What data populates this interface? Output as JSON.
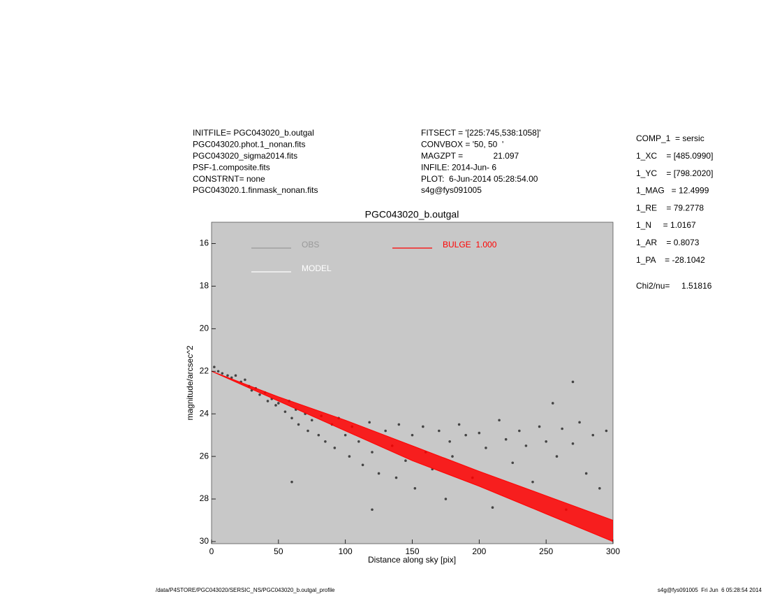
{
  "header": {
    "left": [
      "INITFILE= PGC043020_b.outgal",
      "PGC043020.phot.1_nonan.fits",
      "PGC043020_sigma2014.fits",
      "PSF-1.composite.fits",
      "CONSTRNT= none",
      "PGC043020.1.finmask_nonan.fits"
    ],
    "middle": [
      "FITSECT = '[225:745,538:1058]'",
      "CONVBOX = '50, 50  '",
      "MAGZPT =             21.097",
      "INFILE: 2014-Jun- 6",
      "PLOT:  6-Jun-2014 05:28:54.00",
      "s4g@fys091005"
    ],
    "params": [
      "COMP_1  = sersic",
      "1_XC    = [485.0990]",
      "1_YC    = [798.2020]",
      "1_MAG   = 12.4999",
      "1_RE    = 79.2778",
      "1_N     = 1.0167",
      "1_AR    = 0.8073",
      "1_PA    = -28.1042"
    ],
    "chi2": "Chi2/nu=     1.51816"
  },
  "footer": {
    "left": "/data/P4STORE/PGC043020/SERSIC_NS/PGC043020_b.outgal_profile",
    "right": "s4g@fys091005  Fri Jun  6 05:28:54 2014"
  },
  "chart_data": {
    "type": "scatter",
    "title": "PGC043020_b.outgal",
    "xlabel": "Distance along sky [pix]",
    "ylabel": "magnitude/arcsec^2",
    "xlim": [
      0,
      300
    ],
    "xticks": [
      0,
      50,
      100,
      150,
      200,
      250,
      300
    ],
    "ylim": [
      30.1,
      15
    ],
    "yticks": [
      16,
      18,
      20,
      22,
      24,
      26,
      28,
      30
    ],
    "background": "#c8c8c8",
    "series": [
      {
        "name": "OBS",
        "color": "#444444",
        "legend_color": "#999999",
        "x": [
          2,
          5,
          8,
          12,
          15,
          18,
          22,
          25,
          28,
          30,
          33,
          36,
          40,
          42,
          45,
          48,
          50,
          55,
          58,
          60,
          63,
          65,
          70,
          72,
          75,
          80,
          82,
          85,
          90,
          92,
          95,
          100,
          103,
          105,
          110,
          113,
          118,
          120,
          125,
          130,
          135,
          138,
          140,
          145,
          150,
          152,
          158,
          160,
          165,
          170,
          175,
          178,
          180,
          185,
          190,
          195,
          200,
          205,
          210,
          215,
          220,
          225,
          230,
          235,
          240,
          245,
          250,
          255,
          258,
          262,
          265,
          270,
          275,
          280,
          285,
          290,
          295,
          60,
          120,
          270
        ],
        "values": [
          21.8,
          22.0,
          22.1,
          22.2,
          22.3,
          22.2,
          22.5,
          22.4,
          22.7,
          22.9,
          22.8,
          23.1,
          23.0,
          23.4,
          23.3,
          23.6,
          23.5,
          23.9,
          23.4,
          24.2,
          23.8,
          24.5,
          24.0,
          24.8,
          24.3,
          25.0,
          24.1,
          25.3,
          24.5,
          25.6,
          24.2,
          25.0,
          26.0,
          24.6,
          25.3,
          26.4,
          24.4,
          25.8,
          26.8,
          24.8,
          25.5,
          27.0,
          24.5,
          26.2,
          25.0,
          27.5,
          24.6,
          25.8,
          26.6,
          24.8,
          28.0,
          25.3,
          26.0,
          24.5,
          25.0,
          27.0,
          24.9,
          25.6,
          28.4,
          24.3,
          25.2,
          26.3,
          24.8,
          25.5,
          27.2,
          24.6,
          25.3,
          23.5,
          26.0,
          24.7,
          28.5,
          25.4,
          24.4,
          26.8,
          25.0,
          27.5,
          24.8,
          27.2,
          28.5,
          22.5
        ]
      },
      {
        "name": "MODEL",
        "color": "#ffffff",
        "legend_color": "#ffffff",
        "x": [],
        "values": []
      },
      {
        "name": "BULGE  1.000",
        "color": "#ff0000",
        "legend_color": "#ff0000",
        "x": [
          0,
          50,
          100,
          150,
          200,
          250,
          300
        ],
        "values": [
          22.0,
          23.2,
          24.3,
          25.5,
          26.7,
          27.85,
          29.0
        ],
        "values_low": [
          22.0,
          23.4,
          24.8,
          26.2,
          27.4,
          28.7,
          30.0
        ]
      }
    ]
  }
}
